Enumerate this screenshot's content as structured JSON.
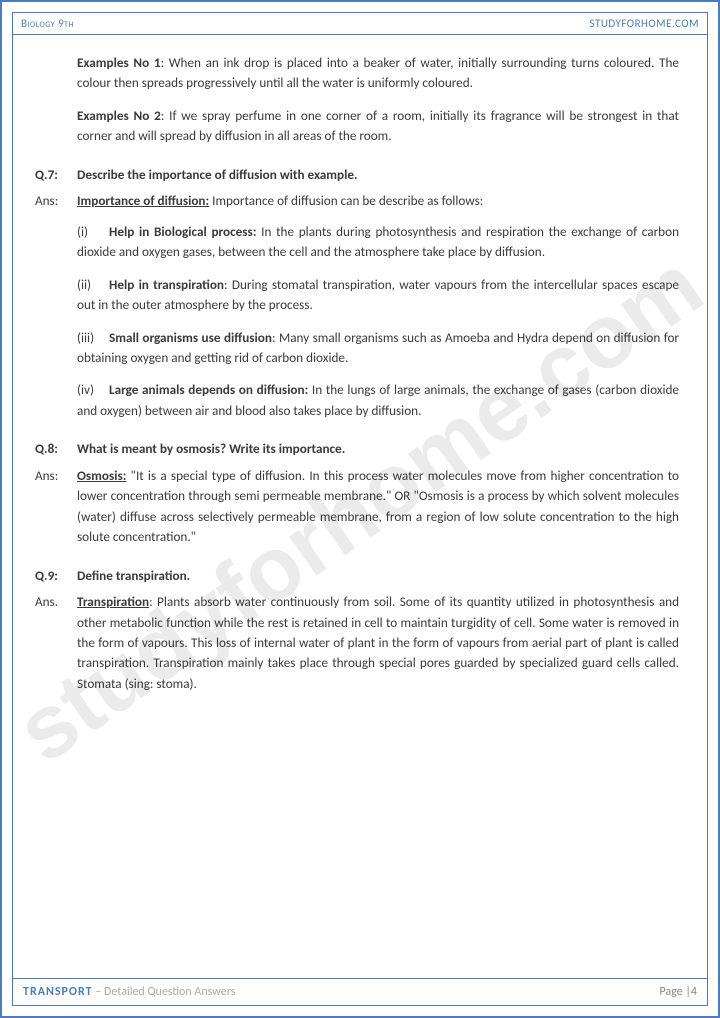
{
  "header": {
    "left": "Biology 9th",
    "right": "STUDYFORHOME.COM"
  },
  "watermark": "studyforhome.com",
  "ex1": {
    "label": "Examples No 1",
    "text": ": When an ink drop is placed into a beaker of water, initially surrounding turns coloured. The colour then spreads progressively until all the water is uniformly coloured."
  },
  "ex2": {
    "label": "Examples No 2",
    "text": ": If we spray perfume in one corner of a room, initially its fragrance will be strongest in that corner and will spread by diffusion in all areas of the room."
  },
  "q7": {
    "q": "Q.7:",
    "qt": "Describe the importance of diffusion with example.",
    "a": "Ans:",
    "heading": "Importance of diffusion:",
    "htext": " Importance of diffusion can be describe as follows:",
    "p1n": "(i)",
    "p1b": "Help in Biological process:",
    "p1t": " In the plants during photosynthesis and respiration the exchange of carbon dioxide and oxygen gases, between the cell and the atmosphere take place by diffusion.",
    "p2n": "(ii)",
    "p2b": "Help in transpiration",
    "p2t": ": During stomatal transpiration, water vapours from the intercellular spaces escape out in the outer atmosphere by the process.",
    "p3n": "(iii)",
    "p3b": "Small organisms use diffusion",
    "p3t": ": Many small organisms such as Amoeba and Hydra depend on diffusion for obtaining oxygen and getting rid of carbon dioxide.",
    "p4n": "(iv)",
    "p4b": "Large animals depends on diffusion:",
    "p4t": " In the lungs of large animals, the exchange of gases (carbon dioxide and oxygen) between air and blood also takes place by diffusion."
  },
  "q8": {
    "q": "Q.8:",
    "qt": "What is meant by osmosis? Write its importance.",
    "a": "Ans:",
    "heading": "Osmosis:",
    "text": " \"It is a special type of diffusion. In this process water molecules move from higher concentration to lower concentration through semi permeable membrane.\" OR \"Osmosis is a process by which solvent molecules (water) diffuse across selectively permeable membrane, from a region of low solute concentration to the high solute concentration.\""
  },
  "q9": {
    "q": "Q.9:",
    "qt": "Define transpiration.",
    "a": "Ans.",
    "heading": "Transpiration",
    "text": ": Plants absorb water continuously from soil. Some of its quantity utilized in photosynthesis and other metabolic function while the rest is retained in cell to maintain turgidity of cell. Some water is removed in the form of vapours. This loss of internal water of plant in the form of vapours from aerial part of plant is called transpiration. Transpiration mainly takes place through special pores guarded by specialized guard cells called. Stomata (sing: stoma)."
  },
  "footer": {
    "title": "TRANSPORT",
    "sub": " – Detailed Question Answers",
    "page": "Page |4"
  },
  "colors": {
    "border": "#4a7bc4",
    "text": "#3a3a3a",
    "muted": "#888",
    "watermark": "rgba(0,0,0,0.08)"
  }
}
